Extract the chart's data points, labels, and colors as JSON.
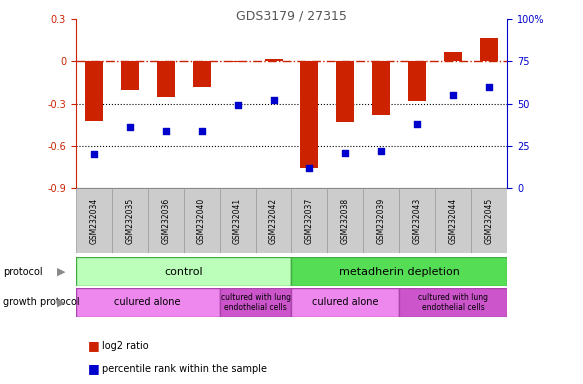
{
  "title": "GDS3179 / 27315",
  "samples": [
    "GSM232034",
    "GSM232035",
    "GSM232036",
    "GSM232040",
    "GSM232041",
    "GSM232042",
    "GSM232037",
    "GSM232038",
    "GSM232039",
    "GSM232043",
    "GSM232044",
    "GSM232045"
  ],
  "log2_ratio": [
    -0.42,
    -0.2,
    -0.25,
    -0.18,
    -0.005,
    0.02,
    -0.76,
    -0.43,
    -0.38,
    -0.28,
    0.07,
    0.17
  ],
  "percentile": [
    20,
    36,
    34,
    34,
    49,
    52,
    12,
    21,
    22,
    38,
    55,
    60
  ],
  "bar_color": "#cc2200",
  "dot_color": "#0000cc",
  "ref_line_color": "#cc2200",
  "grid_color": "#000000",
  "bg_color": "#ffffff",
  "plot_bg": "#ffffff",
  "ylim_left": [
    -0.9,
    0.3
  ],
  "ylim_right": [
    0,
    100
  ],
  "yticks_left": [
    -0.9,
    -0.6,
    -0.3,
    0.0,
    0.3
  ],
  "yticks_right": [
    0,
    25,
    50,
    75,
    100
  ],
  "protocol_control_color": "#bbffbb",
  "protocol_metadherin_color": "#55dd55",
  "growth_alone_color": "#ee88ee",
  "growth_lung_color": "#cc55cc",
  "control_samples": 6,
  "metadherin_samples": 6,
  "alone_control_count": 4,
  "lung_control_count": 2,
  "alone_metadherin_count": 3,
  "lung_metadherin_count": 3,
  "xtick_bg": "#cccccc"
}
